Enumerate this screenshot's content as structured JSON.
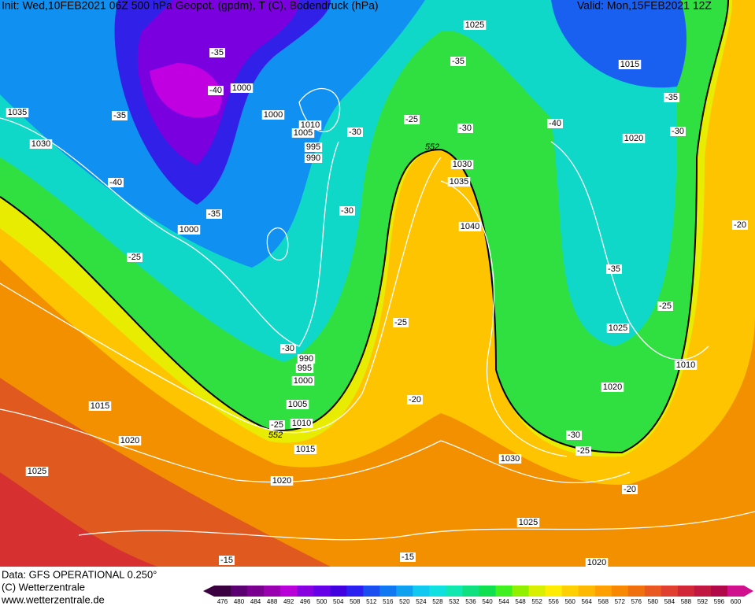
{
  "header": {
    "init": "Init: Wed,10FEB2021 06Z 500 hPa Geopot. (gpdm), T (C), Bodendruck (hPa)",
    "valid": "Valid: Mon,15FEB2021 12Z"
  },
  "map": {
    "isobar_labels": [
      "1025",
      "1015",
      "1035",
      "1000",
      "1000",
      "1010",
      "1005",
      "995",
      "990",
      "1030",
      "1020",
      "1030",
      "1035",
      "1040",
      "1000",
      "1025",
      "990",
      "995",
      "1000",
      "1010",
      "1020",
      "1015",
      "1005",
      "1010",
      "1020",
      "1015",
      "1030",
      "1025",
      "1020",
      "1025",
      "1020"
    ],
    "temperature_labels": [
      "-35",
      "-35",
      "-40",
      "-35",
      "-35",
      "-25",
      "-30",
      "-40",
      "-30",
      "-30",
      "-40",
      "-30",
      "-35",
      "-20",
      "-25",
      "-35",
      "-25",
      "-25",
      "-30",
      "-20",
      "-25",
      "-30",
      "-25",
      "-20",
      "-15",
      "-15"
    ],
    "contour_labels": [
      "552",
      "552"
    ]
  },
  "colorbar": {
    "levels": [
      476,
      480,
      484,
      488,
      492,
      496,
      500,
      504,
      508,
      512,
      516,
      520,
      524,
      528,
      532,
      536,
      540,
      544,
      548,
      552,
      556,
      560,
      564,
      568,
      572,
      576,
      580,
      584,
      588,
      592,
      596,
      600
    ],
    "colors": [
      "#3a0040",
      "#5a0070",
      "#7a0090",
      "#9900b0",
      "#b800d8",
      "#8800e0",
      "#6600e8",
      "#4000e0",
      "#2a20f0",
      "#1a4ef0",
      "#1078f0",
      "#10a0f0",
      "#10c8f0",
      "#10e0e0",
      "#10e8b0",
      "#10e080",
      "#10e050",
      "#40f020",
      "#90f000",
      "#d8f000",
      "#ffec00",
      "#ffd000",
      "#ffb800",
      "#ffa000",
      "#f88800",
      "#f07010",
      "#e85820",
      "#e04030",
      "#d02838",
      "#c01840",
      "#b00848",
      "#d0108c"
    ]
  },
  "footer": {
    "data": "Data: GFS OPERATIONAL 0.250°",
    "copyright": "(C) Wetterzentrale",
    "url": "www.wetterzentrale.de"
  }
}
